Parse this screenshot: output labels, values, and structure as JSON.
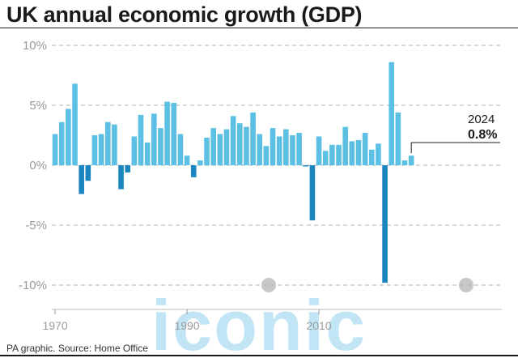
{
  "header": {
    "title": "UK annual economic growth (GDP)"
  },
  "footer": {
    "source": "PA graphic. Source: Home Office"
  },
  "watermark": {
    "text": "iconic"
  },
  "colors": {
    "positive": "#5bc0e3",
    "negative": "#1a86bf",
    "grid": "#b0b0b0",
    "axis_text": "#9a9a9a"
  },
  "chart_data": {
    "type": "bar",
    "title": "UK annual economic growth (GDP)",
    "xlabel": "",
    "ylabel": "",
    "ylim": [
      -11.5,
      10.5
    ],
    "grid": true,
    "y_ticks": [
      10,
      5,
      0,
      -5,
      -10
    ],
    "y_tick_labels": [
      "10%",
      "5%",
      "0%",
      "-5%",
      "-10%"
    ],
    "x_ticks": [
      1970,
      1990,
      2010
    ],
    "x_tick_labels": [
      "1970",
      "1990",
      "2010"
    ],
    "categories": [
      1970,
      1971,
      1972,
      1973,
      1974,
      1975,
      1976,
      1977,
      1978,
      1979,
      1980,
      1981,
      1982,
      1983,
      1984,
      1985,
      1986,
      1987,
      1988,
      1989,
      1990,
      1991,
      1992,
      1993,
      1994,
      1995,
      1996,
      1997,
      1998,
      1999,
      2000,
      2001,
      2002,
      2003,
      2004,
      2005,
      2006,
      2007,
      2008,
      2009,
      2010,
      2011,
      2012,
      2013,
      2014,
      2015,
      2016,
      2017,
      2018,
      2019,
      2020,
      2021,
      2022,
      2023,
      2024
    ],
    "values": [
      2.6,
      3.6,
      4.7,
      6.8,
      -2.4,
      -1.3,
      2.5,
      2.6,
      3.6,
      3.4,
      -2.0,
      -0.6,
      2.4,
      4.2,
      1.9,
      4.3,
      3.1,
      5.3,
      5.2,
      2.6,
      0.8,
      -1.0,
      0.4,
      2.3,
      3.1,
      2.6,
      3.0,
      4.1,
      3.5,
      3.2,
      4.4,
      2.6,
      1.6,
      3.1,
      2.4,
      3.0,
      2.5,
      2.7,
      -0.1,
      -4.6,
      2.4,
      1.2,
      1.7,
      1.7,
      3.2,
      2.0,
      2.1,
      2.7,
      1.3,
      1.8,
      -9.8,
      8.6,
      4.4,
      0.4,
      0.8
    ],
    "annotation": {
      "year": "2024",
      "value": "0.8%"
    }
  }
}
